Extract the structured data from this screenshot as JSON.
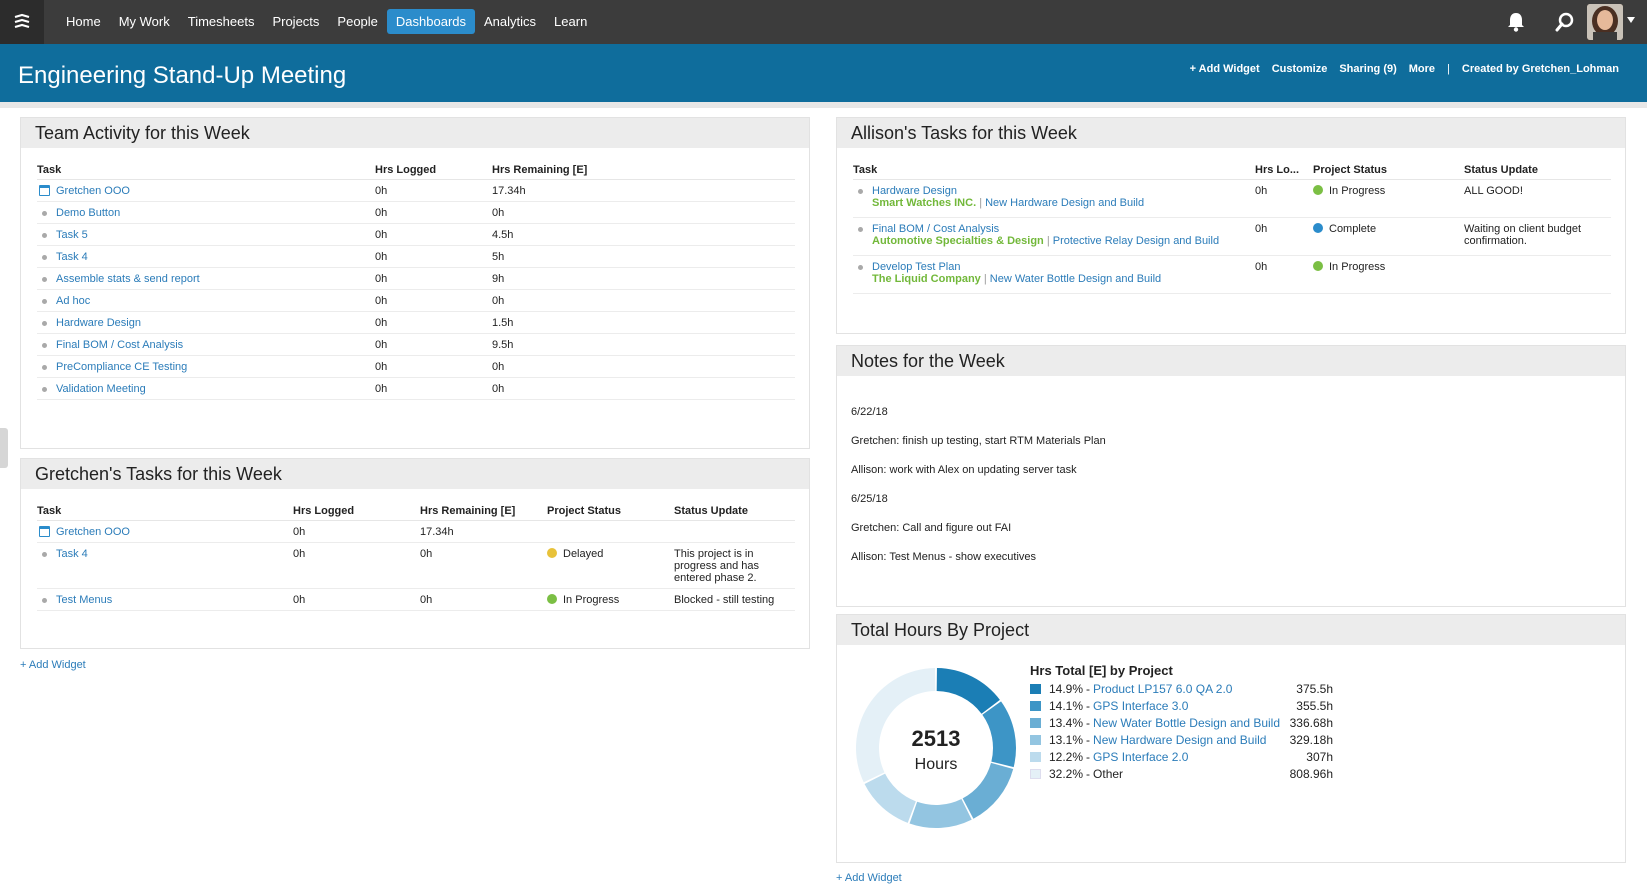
{
  "nav": {
    "items": [
      "Home",
      "My Work",
      "Timesheets",
      "Projects",
      "People",
      "Dashboards",
      "Analytics",
      "Learn"
    ],
    "active_index": 5
  },
  "header": {
    "title": "Engineering Stand-Up Meeting",
    "add_widget": "+ Add Widget",
    "customize": "Customize",
    "sharing": "Sharing (9)",
    "more": "More",
    "separator": "|",
    "created_by": "Created by Gretchen_Lohman"
  },
  "team_activity": {
    "title": "Team Activity for this Week",
    "columns": [
      "Task",
      "Hrs Logged",
      "Hrs Remaining [E]"
    ],
    "rows": [
      {
        "task": "Gretchen OOO",
        "icon": "calendar-icon",
        "logged": "0h",
        "remaining": "17.34h"
      },
      {
        "task": "Demo Button",
        "icon": "bullet",
        "logged": "0h",
        "remaining": "0h"
      },
      {
        "task": "Task 5",
        "icon": "bullet",
        "logged": "0h",
        "remaining": "4.5h"
      },
      {
        "task": "Task 4",
        "icon": "bullet",
        "logged": "0h",
        "remaining": "5h"
      },
      {
        "task": "Assemble stats & send report",
        "icon": "bullet",
        "logged": "0h",
        "remaining": "9h"
      },
      {
        "task": "Ad hoc",
        "icon": "bullet",
        "logged": "0h",
        "remaining": "0h"
      },
      {
        "task": "Hardware Design",
        "icon": "bullet",
        "logged": "0h",
        "remaining": "1.5h"
      },
      {
        "task": "Final BOM / Cost Analysis",
        "icon": "bullet",
        "logged": "0h",
        "remaining": "9.5h"
      },
      {
        "task": "PreCompliance CE Testing",
        "icon": "bullet",
        "logged": "0h",
        "remaining": "0h"
      },
      {
        "task": "Validation Meeting",
        "icon": "bullet",
        "logged": "0h",
        "remaining": "0h"
      }
    ]
  },
  "gretchen_tasks": {
    "title": "Gretchen's Tasks for this Week",
    "columns": [
      "Task",
      "Hrs Logged",
      "Hrs Remaining [E]",
      "Project Status",
      "Status Update"
    ],
    "rows": [
      {
        "task": "Gretchen OOO",
        "icon": "calendar-icon",
        "logged": "0h",
        "remaining": "17.34h",
        "status": "",
        "status_color": "",
        "update": ""
      },
      {
        "task": "Task 4",
        "icon": "bullet",
        "logged": "0h",
        "remaining": "0h",
        "status": "Delayed",
        "status_color": "#e8c23a",
        "update": "This project is in progress and has entered phase 2."
      },
      {
        "task": "Test Menus",
        "icon": "bullet",
        "logged": "0h",
        "remaining": "0h",
        "status": "In Progress",
        "status_color": "#7bbf44",
        "update": "Blocked - still testing"
      }
    ]
  },
  "left_add_widget": "+ Add Widget",
  "allison_tasks": {
    "title": "Allison's Tasks for this Week",
    "columns": [
      "Task",
      "Hrs Lo...",
      "Project Status",
      "Status Update"
    ],
    "rows": [
      {
        "task": "Hardware Design",
        "client": "Smart Watches INC.",
        "project": "New Hardware Design and Build",
        "logged": "0h",
        "status": "In Progress",
        "status_color": "#7bbf44",
        "update": "ALL GOOD!"
      },
      {
        "task": "Final BOM / Cost Analysis",
        "client": "Automotive Specialties & Design",
        "project": "Protective Relay Design and Build",
        "logged": "0h",
        "status": "Complete",
        "status_color": "#2b8ccb",
        "update": "Waiting on client budget confirmation."
      },
      {
        "task": "Develop Test Plan",
        "client": "The Liquid Company",
        "project": "New Water Bottle Design and Build",
        "logged": "0h",
        "status": "In Progress",
        "status_color": "#7bbf44",
        "update": ""
      }
    ],
    "pipe": "|"
  },
  "notes": {
    "title": "Notes for the Week",
    "lines": [
      "6/22/18",
      "Gretchen: finish up testing, start RTM Materials Plan",
      "Allison: work with Alex on updating server task",
      "6/25/18",
      "Gretchen: Call and figure out FAI",
      "Allison: Test Menus - show executives"
    ]
  },
  "total_hours": {
    "title": "Total Hours By Project",
    "center_value": "2513",
    "center_label": "Hours",
    "legend_title": "Hrs Total [E] by Project"
  },
  "right_add_widget": "+ Add Widget",
  "chart_data": {
    "type": "pie",
    "title": "Hrs Total [E] by Project",
    "total": 2513,
    "unit": "Hours",
    "slices": [
      {
        "label": "Product LP157 6.0 QA 2.0",
        "pct": "14.9%",
        "percent": 14.9,
        "value": "375.5h",
        "hours": 375.5,
        "color": "#1b7eb5",
        "link": true
      },
      {
        "label": "GPS Interface 3.0",
        "pct": "14.1%",
        "percent": 14.1,
        "value": "355.5h",
        "hours": 355.5,
        "color": "#3d95c6",
        "link": true
      },
      {
        "label": "New Water Bottle Design and Build",
        "pct": "13.4%",
        "percent": 13.4,
        "value": "336.68h",
        "hours": 336.68,
        "color": "#6aaed4",
        "link": true
      },
      {
        "label": "New Hardware Design and Build",
        "pct": "13.1%",
        "percent": 13.1,
        "value": "329.18h",
        "hours": 329.18,
        "color": "#93c5e1",
        "link": true
      },
      {
        "label": "GPS Interface 2.0",
        "pct": "12.2%",
        "percent": 12.2,
        "value": "307h",
        "hours": 307,
        "color": "#bcdbed",
        "link": true
      },
      {
        "label": "Other",
        "pct": "32.2%",
        "percent": 32.2,
        "value": "808.96h",
        "hours": 808.96,
        "color": "#e4f0f7",
        "link": false
      }
    ]
  }
}
